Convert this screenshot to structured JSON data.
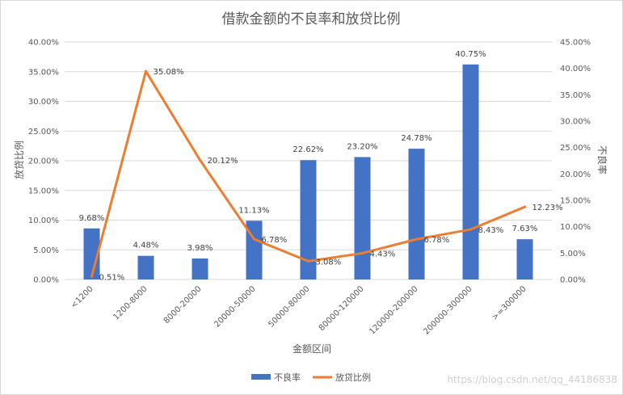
{
  "chart_data": {
    "type": "bar",
    "title": "借款金额的不良率和放贷比例",
    "xlabel": "金额区间",
    "ylabel_left": "放贷比例",
    "ylabel_right": "不良率",
    "ylim_left": [
      0,
      0.4
    ],
    "ylim_right": [
      0,
      0.45
    ],
    "y_left_ticks": [
      "0.00%",
      "5.00%",
      "10.00%",
      "15.00%",
      "20.00%",
      "25.00%",
      "30.00%",
      "35.00%",
      "40.00%"
    ],
    "y_right_ticks": [
      "0.00%",
      "5.00%",
      "10.00%",
      "15.00%",
      "20.00%",
      "25.00%",
      "30.00%",
      "35.00%",
      "40.00%",
      "45.00%"
    ],
    "categories": [
      "<1200",
      "1200-8000",
      "8000-20000",
      "20000-50000",
      "50000-80000",
      "80000-120000",
      "120000-200000",
      "200000-300000",
      ">=300000"
    ],
    "series": [
      {
        "name": "不良率",
        "kind": "bar",
        "axis": "right",
        "color": "#4472C4",
        "values": [
          0.0968,
          0.0448,
          0.0398,
          0.1113,
          0.2262,
          0.232,
          0.2478,
          0.4075,
          0.0763
        ],
        "labels": [
          "9.68%",
          "4.48%",
          "3.98%",
          "11.13%",
          "22.62%",
          "23.20%",
          "24.78%",
          "40.75%",
          "7.63%"
        ]
      },
      {
        "name": "放贷比例",
        "kind": "line",
        "axis": "left",
        "color": "#ED7D31",
        "values": [
          0.0051,
          0.3508,
          0.2012,
          0.0678,
          0.0308,
          0.0443,
          0.0678,
          0.0843,
          0.1223
        ],
        "labels": [
          "0.51%",
          "35.08%",
          "20.12%",
          "6.78%",
          "3.08%",
          "4.43%",
          "6.78%",
          "8.43%",
          "12.23%"
        ]
      }
    ],
    "legend": "bottom",
    "grid": true
  },
  "watermark": "https://blog.csdn.net/qq_44186838"
}
